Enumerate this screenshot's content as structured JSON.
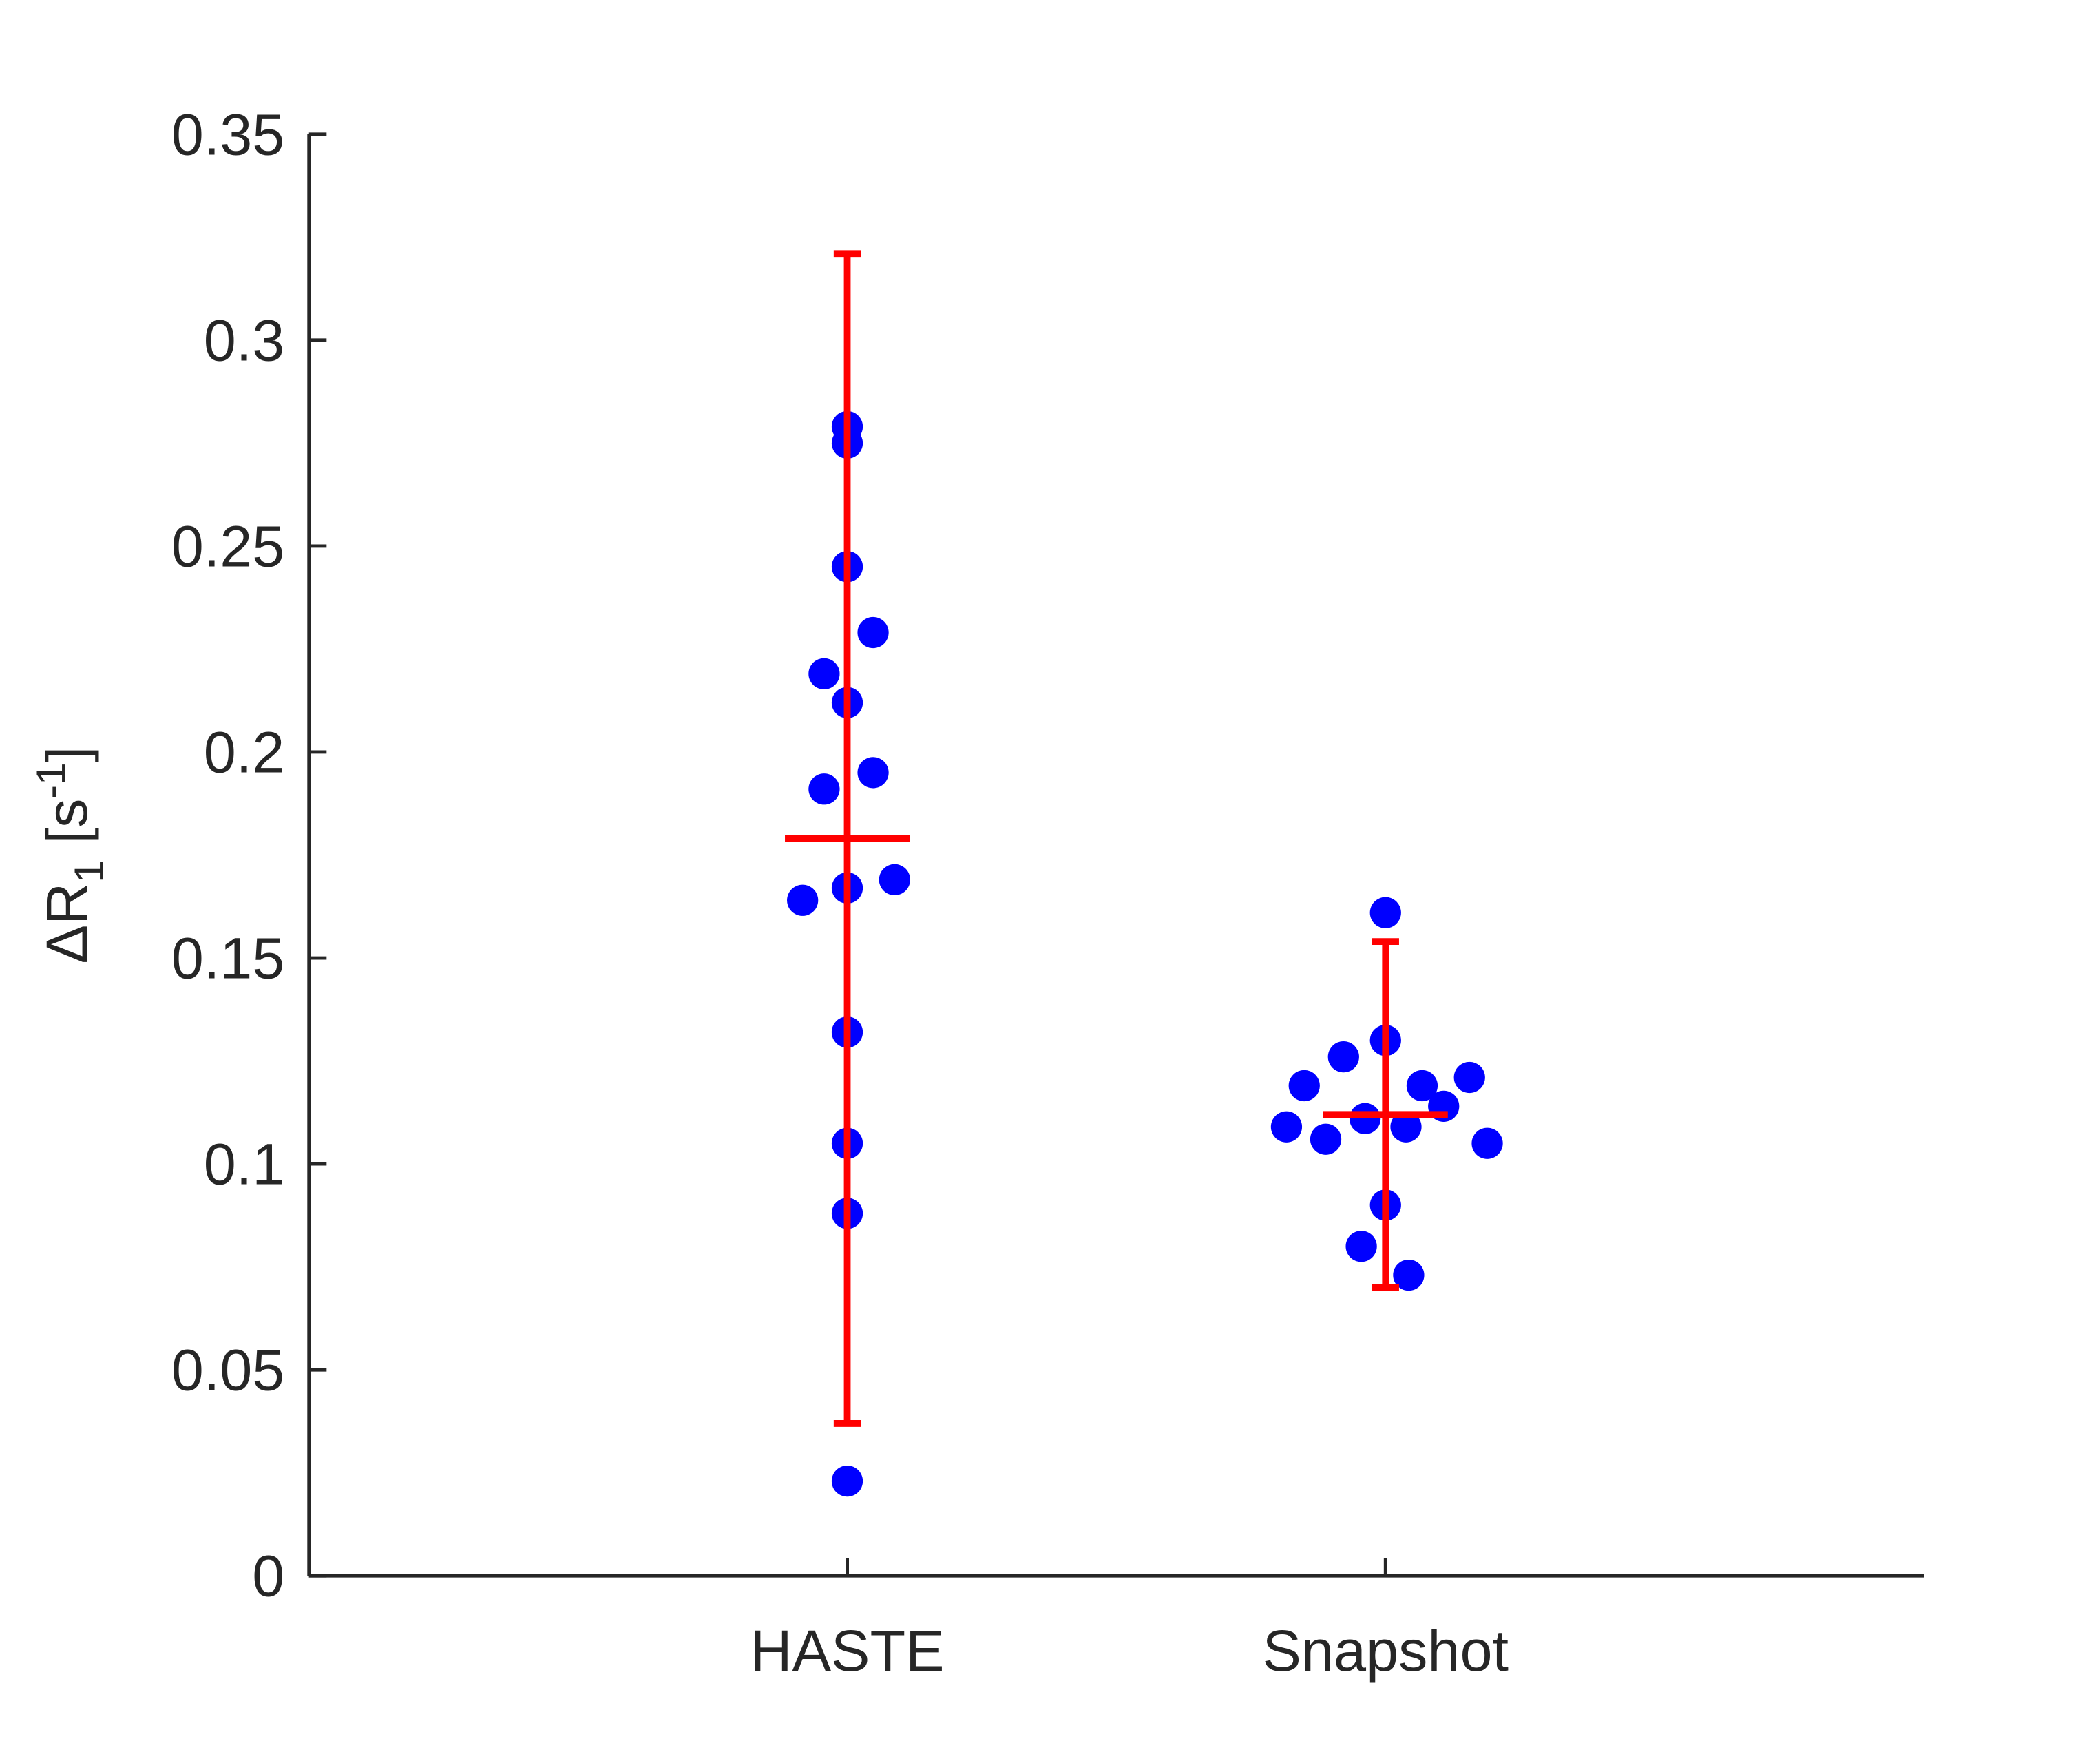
{
  "chart_data": {
    "type": "scatter",
    "ylabel": {
      "main": "ΔR",
      "sub": "1",
      "rest": " [s",
      "sup": "-1",
      "end": "]"
    },
    "xlim": [
      0,
      3
    ],
    "xticks": [
      {
        "value": 1,
        "label": "HASTE"
      },
      {
        "value": 2,
        "label": "Snapshot"
      }
    ],
    "ylim": [
      0,
      0.35
    ],
    "yticks": [
      0,
      0.05,
      0.1,
      0.15,
      0.2,
      0.25,
      0.3,
      0.35
    ],
    "series": [
      {
        "color": "#0000ff",
        "x": [
          1.0,
          1.0,
          1.0,
          1.048,
          0.957,
          1.0,
          0.957,
          1.048,
          0.917,
          1.0,
          1.088,
          1.0,
          1.0,
          1.0,
          1.0,
          2.0,
          2.0,
          1.922,
          1.849,
          2.156,
          2.068,
          2.108,
          1.962,
          2.038,
          1.816,
          1.889,
          2.189,
          2.0,
          1.955,
          2.043
        ],
        "values": [
          0.279,
          0.275,
          0.245,
          0.229,
          0.219,
          0.212,
          0.191,
          0.195,
          0.164,
          0.167,
          0.169,
          0.132,
          0.105,
          0.088,
          0.023,
          0.161,
          0.13,
          0.126,
          0.119,
          0.121,
          0.119,
          0.114,
          0.111,
          0.109,
          0.109,
          0.106,
          0.105,
          0.09,
          0.08,
          0.073
        ]
      }
    ],
    "error_bars": [
      {
        "x": 1,
        "value": 0.179,
        "error": 0.142,
        "color": "#ff0000"
      },
      {
        "x": 2,
        "value": 0.112,
        "error": 0.042,
        "color": "#ff0000"
      }
    ]
  }
}
